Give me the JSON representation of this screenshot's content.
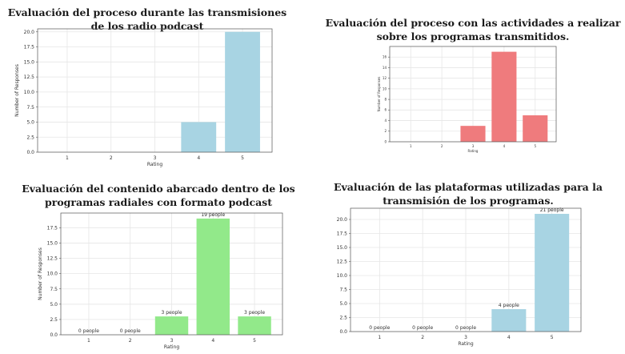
{
  "colors": {
    "blue": "#a8d4e3",
    "red": "#ef7b7d",
    "green": "#92e98a",
    "grid": "#e6e6e6",
    "axis": "#555555"
  },
  "chart_data": [
    {
      "type": "bar",
      "title": "Evaluación del proceso durante las transmisiones de los radio podcast",
      "xlabel": "Rating",
      "ylabel": "Number of Responses",
      "categories": [
        "1",
        "2",
        "3",
        "4",
        "5"
      ],
      "values": [
        0,
        0,
        0,
        5,
        20
      ],
      "ylim": [
        0,
        20.5
      ],
      "yticks": [
        "0.0",
        "2.5",
        "5.0",
        "7.5",
        "10.0",
        "12.5",
        "15.0",
        "17.5",
        "20.0"
      ],
      "data_labels": [],
      "grid": true,
      "color": "#a8d4e3"
    },
    {
      "type": "bar",
      "title": "Evaluación del proceso con las actividades a realizar sobre los programas transmitidos.",
      "xlabel": "Rating",
      "ylabel": "Number of Responses",
      "categories": [
        "1",
        "2",
        "3",
        "4",
        "5"
      ],
      "values": [
        0,
        0,
        3,
        17,
        5
      ],
      "ylim": [
        0,
        18
      ],
      "yticks": [
        "0",
        "2",
        "4",
        "6",
        "8",
        "10",
        "12",
        "14",
        "16"
      ],
      "data_labels": [],
      "grid": true,
      "color": "#ef7b7d"
    },
    {
      "type": "bar",
      "title": "Evaluación del contenido abarcado dentro de los programas radiales con formato podcast",
      "xlabel": "Rating",
      "ylabel": "Number of Responses",
      "categories": [
        "1",
        "2",
        "3",
        "4",
        "5"
      ],
      "values": [
        0,
        0,
        3,
        19,
        3
      ],
      "ylim": [
        0,
        19.9
      ],
      "yticks": [
        "0.0",
        "2.5",
        "5.0",
        "7.5",
        "10.0",
        "12.5",
        "15.0",
        "17.5"
      ],
      "data_labels": [
        "0 people",
        "0 people",
        "3 people",
        "19 people",
        "3 people"
      ],
      "grid": true,
      "color": "#92e98a"
    },
    {
      "type": "bar",
      "title": "Evaluación de las plataformas utilizadas para la transmisión de los programas.",
      "xlabel": "Rating",
      "ylabel": "Number of Responses",
      "categories": [
        "1",
        "2",
        "3",
        "4",
        "5"
      ],
      "values": [
        0,
        0,
        0,
        4,
        21
      ],
      "ylim": [
        0,
        22
      ],
      "yticks": [
        "0.0",
        "2.5",
        "5.0",
        "7.5",
        "10.0",
        "12.5",
        "15.0",
        "17.5",
        "20.0"
      ],
      "data_labels": [
        "0 people",
        "0 people",
        "0 people",
        "4 people",
        "21 people"
      ],
      "grid": true,
      "color": "#a8d4e3"
    }
  ]
}
